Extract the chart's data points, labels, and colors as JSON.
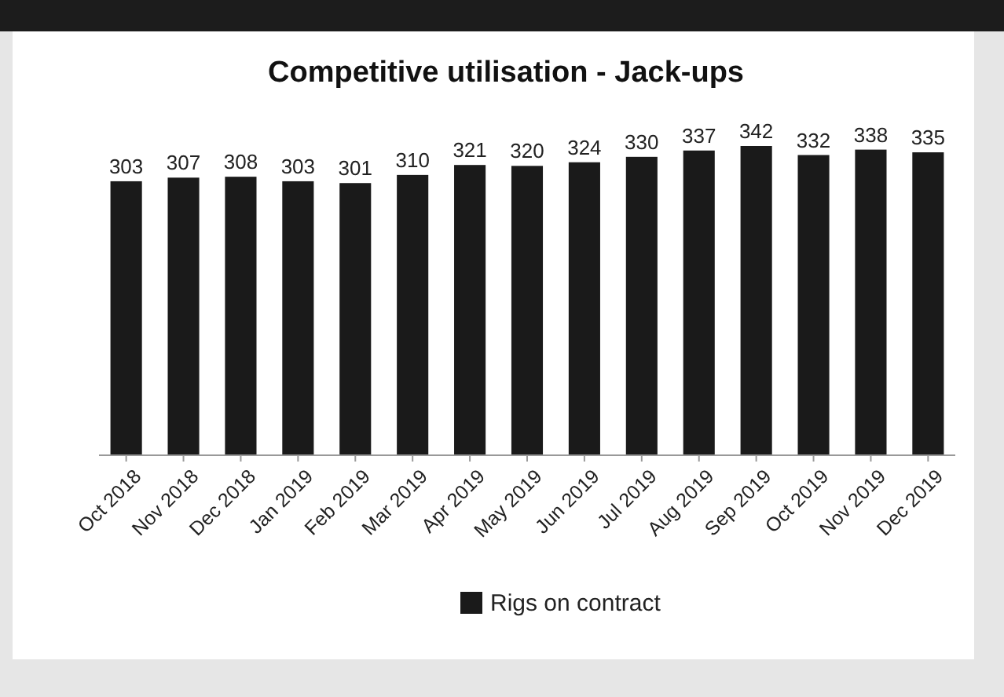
{
  "chart_data": {
    "type": "bar",
    "title": "Competitive utilisation - Jack-ups",
    "categories": [
      "Oct 2018",
      "Nov 2018",
      "Dec 2018",
      "Jan 2019",
      "Feb 2019",
      "Mar 2019",
      "Apr 2019",
      "May 2019",
      "Jun 2019",
      "Jul 2019",
      "Aug 2019",
      "Sep 2019",
      "Oct 2019",
      "Nov 2019",
      "Dec 2019"
    ],
    "series": [
      {
        "name": "Rigs on contract",
        "color": "#1a1a1a",
        "values": [
          303,
          307,
          308,
          303,
          301,
          310,
          321,
          320,
          324,
          330,
          337,
          342,
          332,
          338,
          335
        ]
      }
    ],
    "data_labels": true,
    "legend": "bottom"
  }
}
